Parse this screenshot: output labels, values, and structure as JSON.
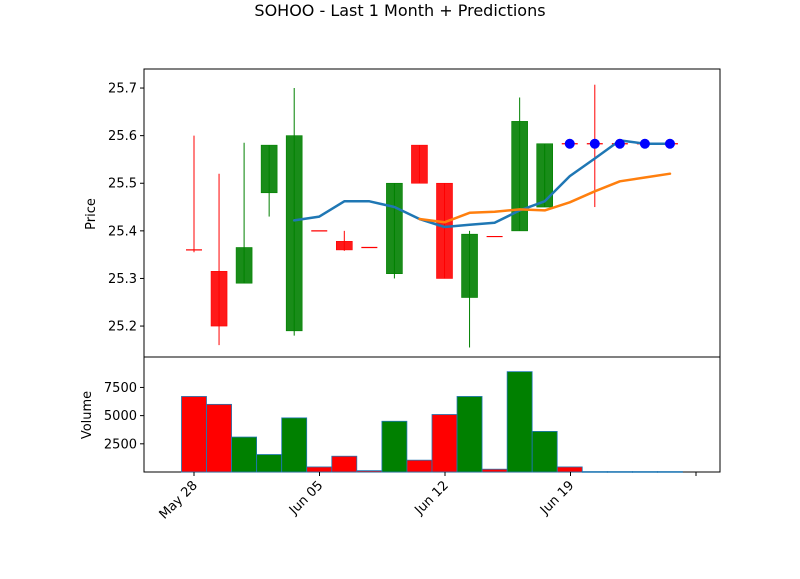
{
  "chart_data": {
    "type": "candlestick",
    "title": "SOHOO - Last 1 Month + Predictions",
    "xlabel": "",
    "ylabel": "Price",
    "volume_ylabel": "Volume",
    "price_ylim": [
      25.135,
      25.74
    ],
    "volume_ylim": [
      0,
      10200
    ],
    "price_yticks": [
      "25.2",
      "25.3",
      "25.4",
      "25.5",
      "25.6",
      "25.7"
    ],
    "volume_yticks": [
      "2500",
      "5000",
      "7500"
    ],
    "x_ticks": [
      {
        "label": "May 28",
        "index": 0
      },
      {
        "label": "Jun 05",
        "index": 5
      },
      {
        "label": "Jun 12",
        "index": 10
      },
      {
        "label": "Jun 19",
        "index": 15
      },
      {
        "label": "",
        "index": 20
      }
    ],
    "candles": [
      {
        "open": 25.36,
        "high": 25.6,
        "low": 25.355,
        "close": 25.36,
        "volume": 6700,
        "color": "red"
      },
      {
        "open": 25.315,
        "high": 25.52,
        "low": 25.16,
        "close": 25.2,
        "volume": 6000,
        "color": "red"
      },
      {
        "open": 25.29,
        "high": 25.585,
        "low": 25.29,
        "close": 25.365,
        "volume": 3100,
        "color": "green"
      },
      {
        "open": 25.48,
        "high": 25.58,
        "low": 25.43,
        "close": 25.58,
        "volume": 1550,
        "color": "green"
      },
      {
        "open": 25.19,
        "high": 25.7,
        "low": 25.18,
        "close": 25.6,
        "volume": 4800,
        "color": "green"
      },
      {
        "open": 25.4,
        "high": 25.4,
        "low": 25.4,
        "close": 25.4,
        "volume": 450,
        "color": "red"
      },
      {
        "open": 25.378,
        "high": 25.4,
        "low": 25.358,
        "close": 25.36,
        "volume": 1400,
        "color": "red"
      },
      {
        "open": 25.365,
        "high": 25.365,
        "low": 25.365,
        "close": 25.365,
        "volume": 120,
        "color": "red"
      },
      {
        "open": 25.31,
        "high": 25.5,
        "low": 25.3,
        "close": 25.5,
        "volume": 4500,
        "color": "green"
      },
      {
        "open": 25.58,
        "high": 25.58,
        "low": 25.5,
        "close": 25.5,
        "volume": 1050,
        "color": "red"
      },
      {
        "open": 25.5,
        "high": 25.5,
        "low": 25.3,
        "close": 25.3,
        "volume": 5100,
        "color": "red"
      },
      {
        "open": 25.26,
        "high": 25.4,
        "low": 25.155,
        "close": 25.393,
        "volume": 6700,
        "color": "green"
      },
      {
        "open": 25.388,
        "high": 25.388,
        "low": 25.388,
        "close": 25.388,
        "volume": 250,
        "color": "red"
      },
      {
        "open": 25.4,
        "high": 25.68,
        "low": 25.4,
        "close": 25.63,
        "volume": 8900,
        "color": "green"
      },
      {
        "open": 25.45,
        "high": 25.583,
        "low": 25.45,
        "close": 25.583,
        "volume": 3600,
        "color": "green"
      },
      {
        "open": 25.583,
        "high": 25.583,
        "low": 25.583,
        "close": 25.583,
        "volume": 450,
        "color": "red"
      },
      {
        "open": 25.583,
        "high": 25.707,
        "low": 25.45,
        "close": 25.583,
        "volume": 40,
        "color": "red"
      },
      {
        "open": 25.583,
        "high": 25.583,
        "low": 25.583,
        "close": 25.583,
        "volume": 40,
        "color": "red"
      },
      {
        "open": 25.583,
        "high": 25.583,
        "low": 25.583,
        "close": 25.583,
        "volume": 40,
        "color": "red"
      },
      {
        "open": 25.583,
        "high": 25.583,
        "low": 25.583,
        "close": 25.583,
        "volume": 40,
        "color": "red"
      }
    ],
    "series": [
      {
        "color": "#1f77b4",
        "start_index": 4,
        "values": [
          25.422,
          25.43,
          25.462,
          25.462,
          25.45,
          25.425,
          25.408,
          25.413,
          25.417,
          25.443,
          25.462,
          25.515,
          25.552,
          25.59,
          25.583,
          25.583
        ]
      },
      {
        "color": "#ff7f0e",
        "start_index": 9,
        "values": [
          25.425,
          25.418,
          25.438,
          25.44,
          25.445,
          25.443,
          25.46,
          25.483,
          25.504,
          25.512,
          25.52
        ]
      }
    ],
    "prediction_markers": {
      "color": "#0000ff",
      "indices": [
        15,
        16,
        17,
        18,
        19
      ],
      "values": [
        25.583,
        25.583,
        25.583,
        25.583,
        25.583
      ]
    },
    "up_color": "#008000",
    "down_color": "#ff0000",
    "grid": false
  }
}
